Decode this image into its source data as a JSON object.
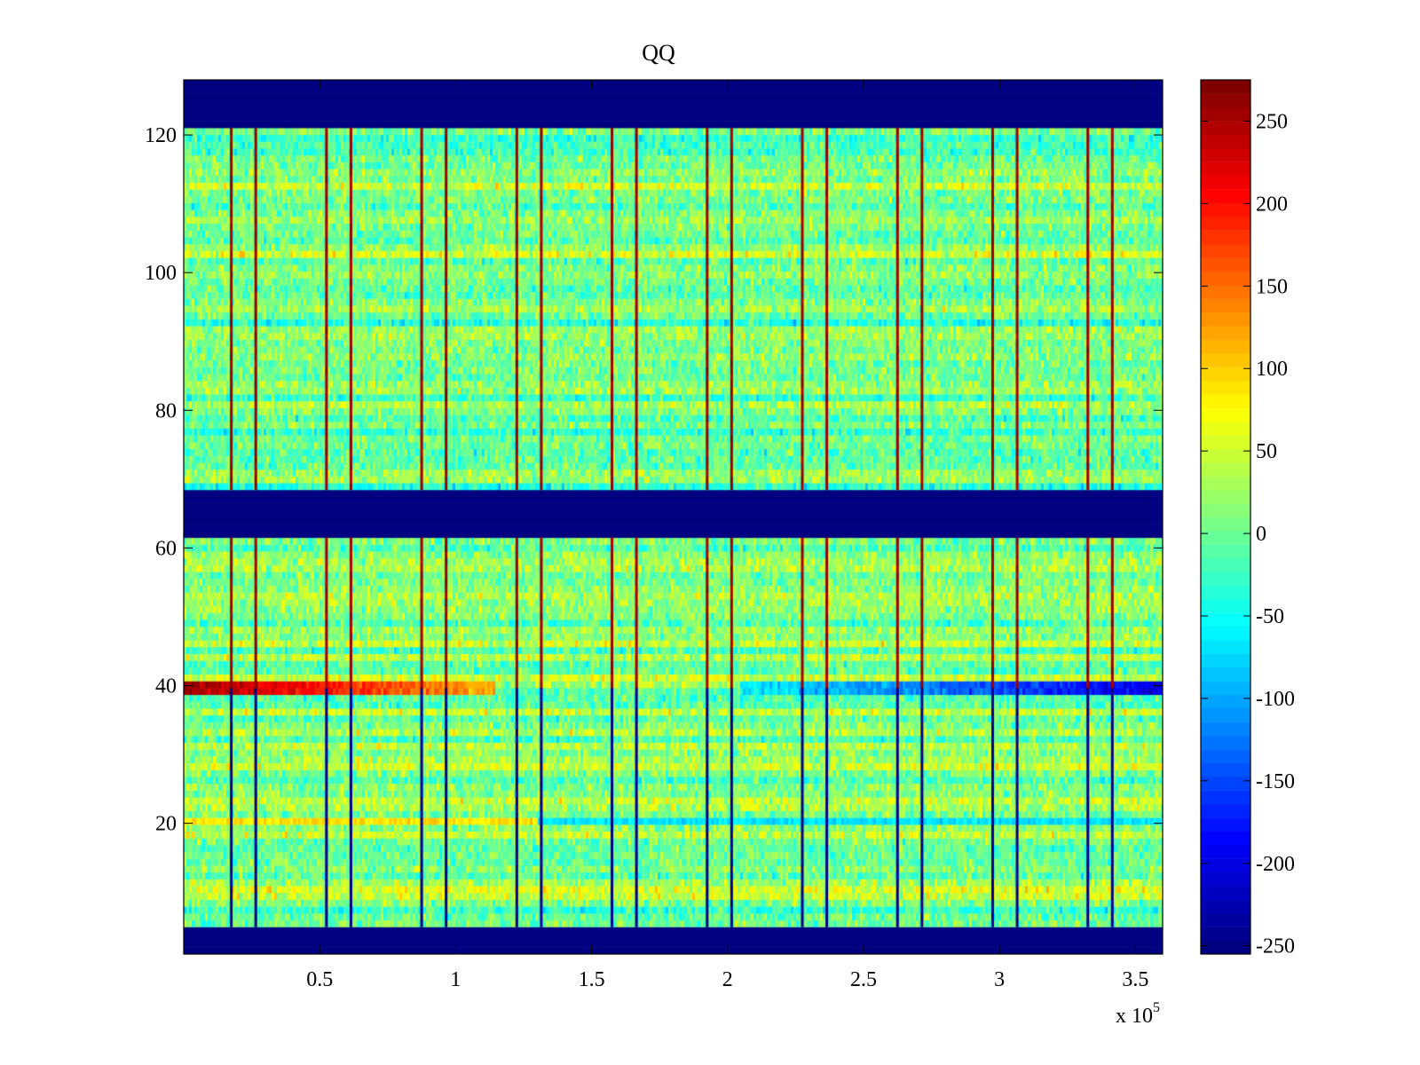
{
  "chart_data": {
    "type": "heatmap",
    "title": "QQ",
    "xlabel": "",
    "ylabel": "",
    "xlim": [
      0,
      360000
    ],
    "ylim": [
      1,
      128
    ],
    "x_exponent_label": "x 10",
    "x_exponent_power": "5",
    "x_ticks": [
      {
        "value": 50000,
        "label": "0.5"
      },
      {
        "value": 100000,
        "label": "1"
      },
      {
        "value": 150000,
        "label": "1.5"
      },
      {
        "value": 200000,
        "label": "2"
      },
      {
        "value": 250000,
        "label": "2.5"
      },
      {
        "value": 300000,
        "label": "3"
      },
      {
        "value": 350000,
        "label": "3.5"
      }
    ],
    "y_ticks": [
      {
        "value": 20,
        "label": "20"
      },
      {
        "value": 40,
        "label": "40"
      },
      {
        "value": 60,
        "label": "60"
      },
      {
        "value": 80,
        "label": "80"
      },
      {
        "value": 100,
        "label": "100"
      },
      {
        "value": 120,
        "label": "120"
      }
    ],
    "colormap": "jet",
    "clim": [
      -255,
      275
    ],
    "colorbar_ticks": [
      {
        "value": 250,
        "label": "250"
      },
      {
        "value": 200,
        "label": "200"
      },
      {
        "value": 150,
        "label": "150"
      },
      {
        "value": 100,
        "label": "100"
      },
      {
        "value": 50,
        "label": "50"
      },
      {
        "value": 0,
        "label": "0"
      },
      {
        "value": -50,
        "label": "-50"
      },
      {
        "value": -100,
        "label": "-100"
      },
      {
        "value": -150,
        "label": "-150"
      },
      {
        "value": -200,
        "label": "-200"
      },
      {
        "value": -250,
        "label": "-250"
      }
    ],
    "background_mean": 10,
    "background_noise": 35,
    "blank_row_bands": [
      {
        "from": 1,
        "to": 4,
        "value": -255
      },
      {
        "from": 62,
        "to": 68,
        "value": -255
      },
      {
        "from": 122,
        "to": 128,
        "value": -255
      }
    ],
    "vertical_lines_x": [
      17500,
      26500,
      52500,
      61500,
      87500,
      96500,
      122500,
      131500,
      157500,
      166500,
      192500,
      201500,
      227500,
      236500,
      262500,
      271500,
      297500,
      306500,
      332500,
      341500
    ],
    "vertical_line_profile": {
      "upper_value": 260,
      "lower_value": -250,
      "split_row": 39
    },
    "row_band_39": {
      "row": 39,
      "left_value": 265,
      "right_value": -205,
      "fade_start_x": 115000,
      "neg_start_x": 205000
    },
    "row_band_20": {
      "row": 20,
      "left_value": 90,
      "right_value": -70,
      "split_x": 130000
    }
  }
}
